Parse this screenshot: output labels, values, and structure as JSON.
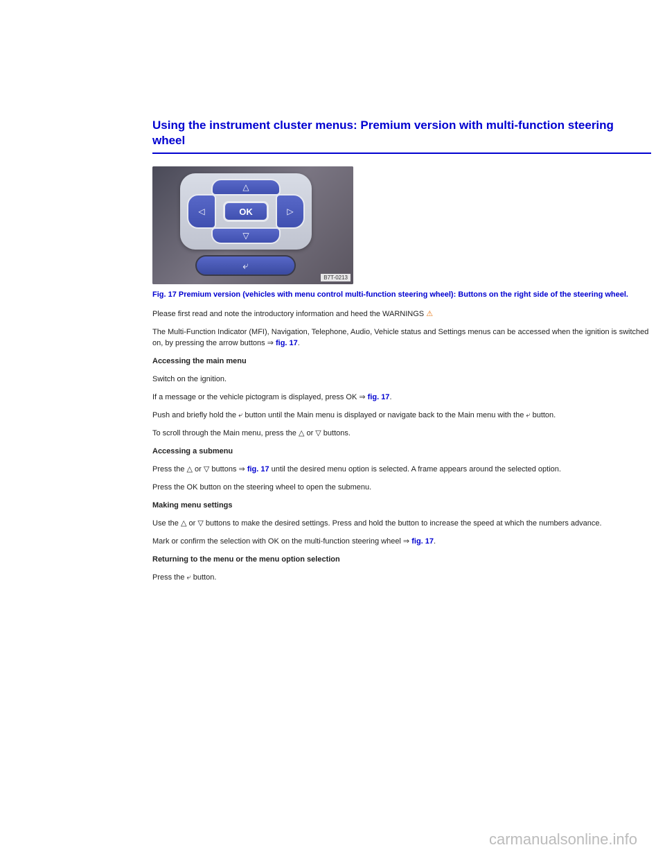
{
  "colors": {
    "link_blue": "#0000d0",
    "text": "#222222",
    "watermark": "#bbbbbb",
    "warn_orange": "#e67817",
    "button_blue_top": "#5868c8",
    "button_blue_bottom": "#4050b0",
    "cluster_bg_top": "#d8dce6",
    "cluster_bg_bottom": "#c0c4d0",
    "figure_bg": "#5a5a6a",
    "page_bg": "#ffffff"
  },
  "typography": {
    "title_fontsize": 17,
    "caption_fontsize": 11,
    "body_fontsize": 11,
    "watermark_fontsize": 22
  },
  "title": "Using the instrument cluster menus: Premium version with multi-function steering wheel",
  "figure": {
    "ok_label": "OK",
    "arrow_up_glyph": "△",
    "arrow_down_glyph": "▽",
    "arrow_left_glyph": "◁",
    "arrow_right_glyph": "▷",
    "back_glyph": "⤶",
    "image_id": "B7T-0213"
  },
  "caption": "Fig. 17 Premium version (vehicles with menu control multi-function steering wheel): Buttons on the right side of the steering wheel.",
  "intro_prefix": "Please first read and note the introductory information and heed the WARNINGS ",
  "warn_glyph": "⚠",
  "menu_summary": "The Multi-Function Indicator (MFI), Navigation, Telephone, Audio, Vehicle status and Settings menus can be accessed when the ignition is switched on, by pressing the arrow buttons ⇒ ",
  "fig_ref": "fig. 17",
  "section1_title": "Accessing the main menu",
  "section1_items": [
    "Switch on the ignition.",
    "If a message or the vehicle pictogram is displayed, press OK ⇒ ",
    "Push and briefly hold the ⤶ button until the Main menu is displayed or navigate back to the Main menu with the ⤶ button.",
    "To scroll through the Main menu, press the △ or ▽ buttons."
  ],
  "section2_title": "Accessing a submenu",
  "section2_items": [
    "Press the △ or ▽ buttons ⇒ ",
    " until the desired menu option is selected. A frame appears around the selected option.",
    "Press the OK button on the steering wheel to open the submenu."
  ],
  "section3_title": "Making menu settings",
  "section3_items": [
    "Use the △ or ▽ buttons to make the desired settings. Press and hold the button to increase the speed at which the numbers advance.",
    "Mark or confirm the selection with OK on the multi-function steering wheel ⇒ "
  ],
  "section4_title": "Returning to the menu or the menu option selection",
  "section4_item": "Press the ⤶ button.",
  "watermark": "carmanualsonline.info"
}
